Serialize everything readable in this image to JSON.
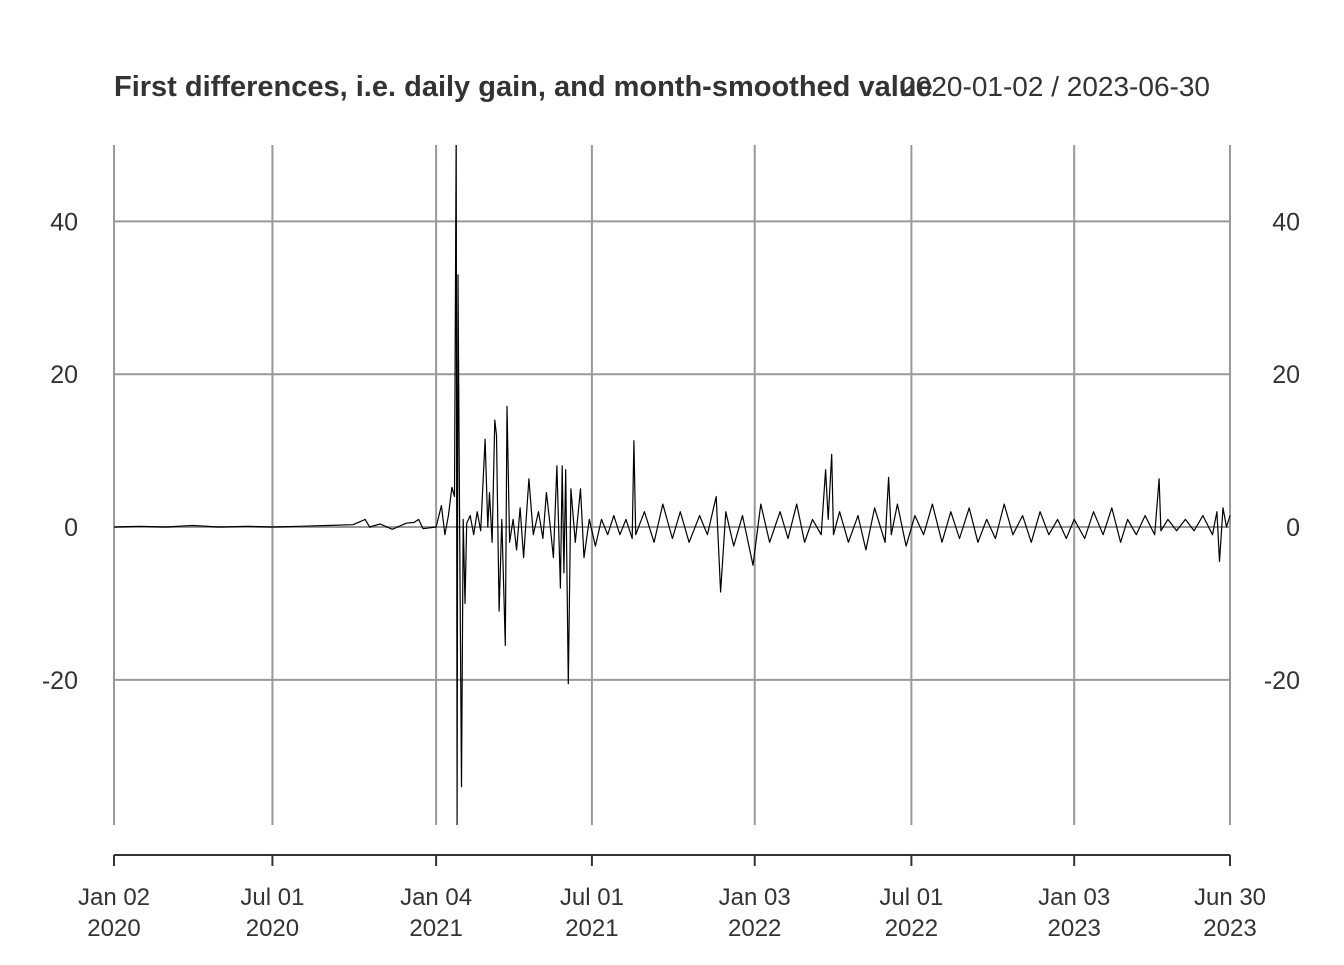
{
  "chart_data": {
    "type": "line",
    "title": "First differences, i.e. daily gain, and month-smoothed value",
    "date_range_label": "2020-01-02 / 2023-06-30",
    "x_start": "2020-01-02",
    "x_end": "2023-06-30",
    "ylim": [
      -39,
      50
    ],
    "y_ticks": [
      {
        "value": 40,
        "label": "40"
      },
      {
        "value": 20,
        "label": "20"
      },
      {
        "value": 0,
        "label": "0"
      },
      {
        "value": -20,
        "label": "-20"
      }
    ],
    "x_ticks": [
      {
        "date": "2020-01-02",
        "line1": "Jan 02",
        "line2": "2020"
      },
      {
        "date": "2020-07-01",
        "line1": "Jul 01",
        "line2": "2020"
      },
      {
        "date": "2021-01-04",
        "line1": "Jan 04",
        "line2": "2021"
      },
      {
        "date": "2021-07-01",
        "line1": "Jul 01",
        "line2": "2021"
      },
      {
        "date": "2022-01-03",
        "line1": "Jan 03",
        "line2": "2022"
      },
      {
        "date": "2022-07-01",
        "line1": "Jul 01",
        "line2": "2022"
      },
      {
        "date": "2023-01-03",
        "line1": "Jan 03",
        "line2": "2023"
      },
      {
        "date": "2023-06-30",
        "line1": "Jun 30",
        "line2": "2023"
      }
    ],
    "grid": true,
    "series": [
      {
        "color": "#000000",
        "points": [
          [
            "2020-01-02",
            0.0
          ],
          [
            "2020-02-01",
            0.1
          ],
          [
            "2020-03-01",
            0.0
          ],
          [
            "2020-04-01",
            0.2
          ],
          [
            "2020-05-01",
            0.0
          ],
          [
            "2020-06-01",
            0.1
          ],
          [
            "2020-07-01",
            0.0
          ],
          [
            "2020-08-01",
            0.1
          ],
          [
            "2020-09-01",
            0.2
          ],
          [
            "2020-10-01",
            0.3
          ],
          [
            "2020-10-15",
            1.0
          ],
          [
            "2020-10-20",
            0.0
          ],
          [
            "2020-11-01",
            0.4
          ],
          [
            "2020-11-15",
            -0.3
          ],
          [
            "2020-12-01",
            0.5
          ],
          [
            "2020-12-10",
            0.6
          ],
          [
            "2020-12-15",
            1.0
          ],
          [
            "2020-12-20",
            -0.2
          ],
          [
            "2021-01-04",
            0.0
          ],
          [
            "2021-01-10",
            2.8
          ],
          [
            "2021-01-14",
            -1.0
          ],
          [
            "2021-01-18",
            1.5
          ],
          [
            "2021-01-22",
            5.2
          ],
          [
            "2021-01-25",
            4.0
          ],
          [
            "2021-01-27",
            52.0
          ],
          [
            "2021-01-28",
            -39.0
          ],
          [
            "2021-01-29",
            33.0
          ],
          [
            "2021-01-31",
            -1.0
          ],
          [
            "2021-02-02",
            -34.0
          ],
          [
            "2021-02-04",
            1.0
          ],
          [
            "2021-02-06",
            -10.0
          ],
          [
            "2021-02-08",
            0.5
          ],
          [
            "2021-02-12",
            1.5
          ],
          [
            "2021-02-16",
            -1.0
          ],
          [
            "2021-02-20",
            2.0
          ],
          [
            "2021-02-24",
            -0.5
          ],
          [
            "2021-03-01",
            11.5
          ],
          [
            "2021-03-04",
            0.0
          ],
          [
            "2021-03-06",
            4.5
          ],
          [
            "2021-03-09",
            -2.0
          ],
          [
            "2021-03-12",
            14.0
          ],
          [
            "2021-03-14",
            12.0
          ],
          [
            "2021-03-17",
            -11.0
          ],
          [
            "2021-03-20",
            1.0
          ],
          [
            "2021-03-24",
            -15.5
          ],
          [
            "2021-03-26",
            15.8
          ],
          [
            "2021-03-29",
            -2.0
          ],
          [
            "2021-04-02",
            1.0
          ],
          [
            "2021-04-06",
            -3.0
          ],
          [
            "2021-04-10",
            2.5
          ],
          [
            "2021-04-14",
            -4.0
          ],
          [
            "2021-04-20",
            6.3
          ],
          [
            "2021-04-25",
            -1.0
          ],
          [
            "2021-05-01",
            2.0
          ],
          [
            "2021-05-06",
            -1.5
          ],
          [
            "2021-05-10",
            4.5
          ],
          [
            "2021-05-14",
            0.5
          ],
          [
            "2021-05-18",
            -4.0
          ],
          [
            "2021-05-22",
            8.0
          ],
          [
            "2021-05-26",
            -8.0
          ],
          [
            "2021-05-28",
            8.0
          ],
          [
            "2021-05-30",
            -6.0
          ],
          [
            "2021-06-01",
            7.5
          ],
          [
            "2021-06-04",
            -20.5
          ],
          [
            "2021-06-07",
            5.0
          ],
          [
            "2021-06-12",
            -2.0
          ],
          [
            "2021-06-18",
            5.0
          ],
          [
            "2021-06-22",
            -4.0
          ],
          [
            "2021-06-28",
            1.0
          ],
          [
            "2021-07-05",
            -2.5
          ],
          [
            "2021-07-12",
            1.0
          ],
          [
            "2021-07-19",
            -1.0
          ],
          [
            "2021-07-26",
            1.5
          ],
          [
            "2021-08-02",
            -1.0
          ],
          [
            "2021-08-09",
            1.0
          ],
          [
            "2021-08-16",
            -1.5
          ],
          [
            "2021-08-18",
            11.3
          ],
          [
            "2021-08-20",
            -1.0
          ],
          [
            "2021-08-30",
            2.0
          ],
          [
            "2021-09-10",
            -2.0
          ],
          [
            "2021-09-20",
            3.0
          ],
          [
            "2021-10-01",
            -1.5
          ],
          [
            "2021-10-10",
            2.0
          ],
          [
            "2021-10-20",
            -2.0
          ],
          [
            "2021-11-01",
            1.5
          ],
          [
            "2021-11-10",
            -1.0
          ],
          [
            "2021-11-20",
            4.0
          ],
          [
            "2021-11-25",
            -8.5
          ],
          [
            "2021-12-01",
            2.0
          ],
          [
            "2021-12-10",
            -2.5
          ],
          [
            "2021-12-20",
            1.5
          ],
          [
            "2022-01-01",
            -5.0
          ],
          [
            "2022-01-10",
            3.0
          ],
          [
            "2022-01-20",
            -2.0
          ],
          [
            "2022-02-01",
            2.0
          ],
          [
            "2022-02-10",
            -1.5
          ],
          [
            "2022-02-20",
            3.0
          ],
          [
            "2022-03-01",
            -2.0
          ],
          [
            "2022-03-10",
            1.0
          ],
          [
            "2022-03-20",
            -1.0
          ],
          [
            "2022-03-25",
            7.5
          ],
          [
            "2022-03-28",
            1.0
          ],
          [
            "2022-04-01",
            9.5
          ],
          [
            "2022-04-03",
            -1.0
          ],
          [
            "2022-04-10",
            2.0
          ],
          [
            "2022-04-20",
            -2.0
          ],
          [
            "2022-05-01",
            1.5
          ],
          [
            "2022-05-10",
            -3.0
          ],
          [
            "2022-05-20",
            2.5
          ],
          [
            "2022-06-01",
            -2.0
          ],
          [
            "2022-06-05",
            6.5
          ],
          [
            "2022-06-08",
            -1.0
          ],
          [
            "2022-06-15",
            3.0
          ],
          [
            "2022-06-25",
            -2.5
          ],
          [
            "2022-07-05",
            1.5
          ],
          [
            "2022-07-15",
            -1.0
          ],
          [
            "2022-07-25",
            3.0
          ],
          [
            "2022-08-05",
            -2.0
          ],
          [
            "2022-08-15",
            2.0
          ],
          [
            "2022-08-25",
            -1.5
          ],
          [
            "2022-09-05",
            2.5
          ],
          [
            "2022-09-15",
            -2.0
          ],
          [
            "2022-09-25",
            1.0
          ],
          [
            "2022-10-05",
            -1.5
          ],
          [
            "2022-10-15",
            3.0
          ],
          [
            "2022-10-25",
            -1.0
          ],
          [
            "2022-11-05",
            1.5
          ],
          [
            "2022-11-15",
            -2.0
          ],
          [
            "2022-11-25",
            2.0
          ],
          [
            "2022-12-05",
            -1.0
          ],
          [
            "2022-12-15",
            1.0
          ],
          [
            "2022-12-25",
            -1.5
          ],
          [
            "2023-01-03",
            1.0
          ],
          [
            "2023-01-15",
            -1.5
          ],
          [
            "2023-01-25",
            2.0
          ],
          [
            "2023-02-05",
            -1.0
          ],
          [
            "2023-02-15",
            2.5
          ],
          [
            "2023-02-25",
            -2.0
          ],
          [
            "2023-03-05",
            1.0
          ],
          [
            "2023-03-15",
            -1.0
          ],
          [
            "2023-03-25",
            1.5
          ],
          [
            "2023-04-05",
            -1.0
          ],
          [
            "2023-04-10",
            6.3
          ],
          [
            "2023-04-12",
            -0.5
          ],
          [
            "2023-04-20",
            1.0
          ],
          [
            "2023-04-30",
            -0.5
          ],
          [
            "2023-05-10",
            1.0
          ],
          [
            "2023-05-20",
            -0.5
          ],
          [
            "2023-05-30",
            1.5
          ],
          [
            "2023-06-10",
            -1.0
          ],
          [
            "2023-06-15",
            2.0
          ],
          [
            "2023-06-18",
            -4.5
          ],
          [
            "2023-06-22",
            2.5
          ],
          [
            "2023-06-26",
            0.0
          ],
          [
            "2023-06-30",
            1.5
          ]
        ]
      }
    ]
  }
}
